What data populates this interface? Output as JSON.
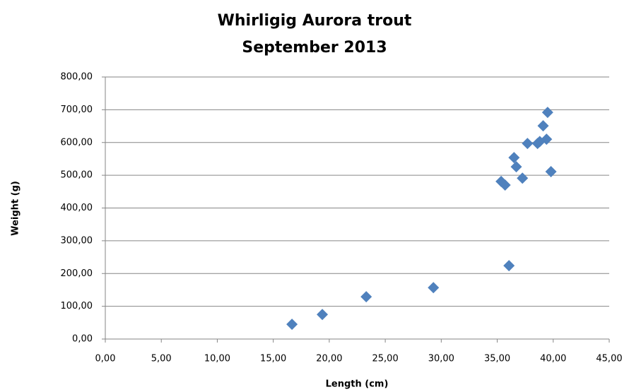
{
  "chart_data": {
    "type": "scatter",
    "title": [
      "Whirligig Aurora trout",
      "September 2013"
    ],
    "x_label": "Length (cm)",
    "y_label": "Weight (g)",
    "series": [
      {
        "color": "#4f81bd",
        "x": [
          16.67,
          19.38,
          23.3,
          29.3,
          35.35,
          35.7,
          36.05,
          36.5,
          36.7,
          37.25,
          37.7,
          38.6,
          38.8,
          39.1,
          39.4,
          39.5,
          39.8
        ],
        "values": [
          45,
          75,
          129,
          157,
          481,
          470,
          224,
          554,
          526,
          491,
          597,
          597,
          603,
          651,
          610,
          692,
          511
        ]
      }
    ],
    "xlim": [
      0,
      45
    ],
    "xticks": [
      {
        "value": 0,
        "label": "0,00"
      },
      {
        "value": 5,
        "label": "5,00"
      },
      {
        "value": 10,
        "label": "10,00"
      },
      {
        "value": 15,
        "label": "15,00"
      },
      {
        "value": 20,
        "label": "20,00"
      },
      {
        "value": 25,
        "label": "25,00"
      },
      {
        "value": 30,
        "label": "30,00"
      },
      {
        "value": 35,
        "label": "35,00"
      },
      {
        "value": 40,
        "label": "40,00"
      },
      {
        "value": 45,
        "label": "45,00"
      }
    ],
    "ylim": [
      0,
      800
    ],
    "yticks": [
      {
        "value": 0,
        "label": "0,00"
      },
      {
        "value": 100,
        "label": "100,00"
      },
      {
        "value": 200,
        "label": "200,00"
      },
      {
        "value": 300,
        "label": "300,00"
      },
      {
        "value": 400,
        "label": "400,00"
      },
      {
        "value": 500,
        "label": "500,00"
      },
      {
        "value": 600,
        "label": "600,00"
      },
      {
        "value": 700,
        "label": "700,00"
      },
      {
        "value": 800,
        "label": "800,00"
      }
    ],
    "grid": true
  }
}
